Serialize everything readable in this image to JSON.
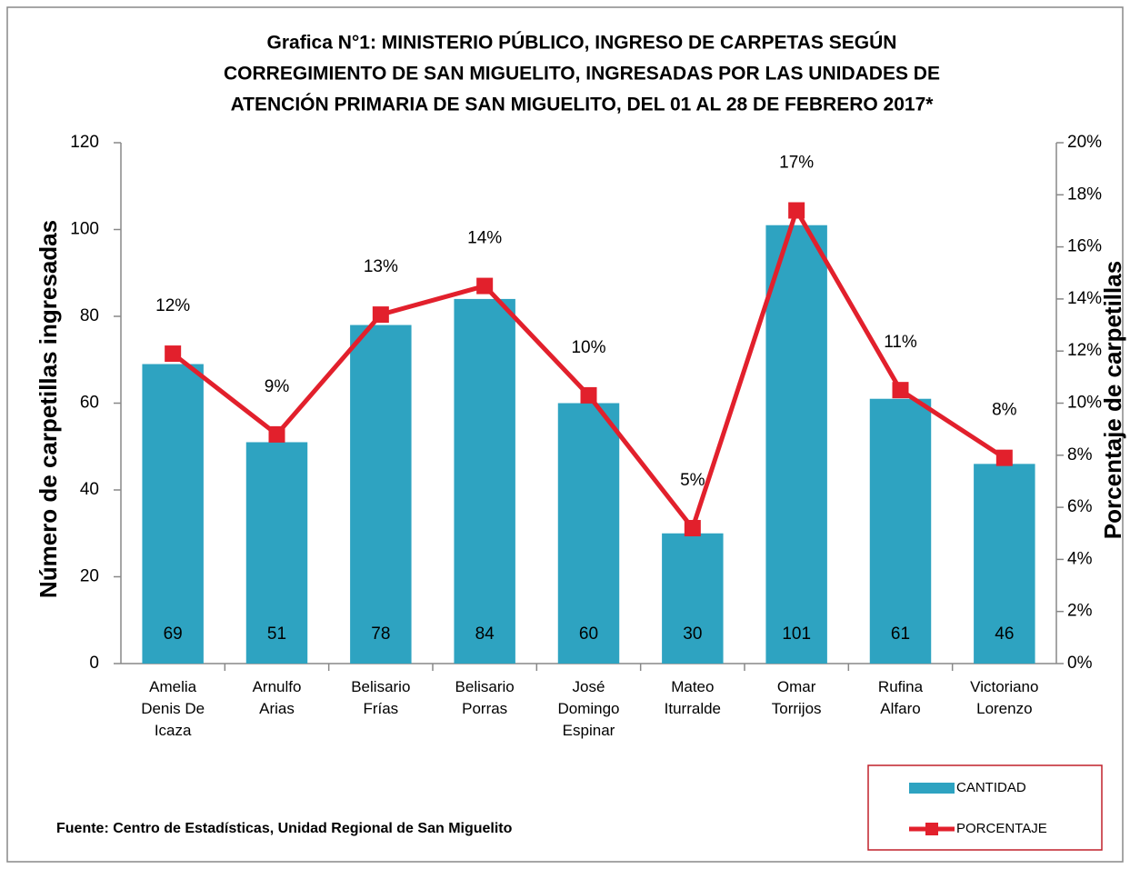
{
  "chart_data": {
    "type": "bar",
    "title": [
      "Grafica N°1: MINISTERIO PÚBLICO, INGRESO DE CARPETAS SEGÚN",
      "CORREGIMIENTO DE SAN MIGUELITO, INGRESADAS POR LAS UNIDADES DE",
      "ATENCIÓN PRIMARIA DE SAN MIGUELITO, DEL 01 AL 28 DE FEBRERO 2017*"
    ],
    "ylabel": "Número de carpetillas  ingresadas",
    "y2label": "Porcentaje de carpetillas",
    "categories": [
      "Amelia Denis De Icaza",
      "Arnulfo Arias",
      "Belisario Frías",
      "Belisario Porras",
      "José Domingo Espinar",
      "Mateo Iturralde",
      "Omar Torrijos",
      "Rufina Alfaro",
      "Victoriano Lorenzo"
    ],
    "series": [
      {
        "name": "CANTIDAD",
        "type": "bar",
        "color": "#2ea3c1",
        "values": [
          69,
          51,
          78,
          84,
          60,
          30,
          101,
          61,
          46
        ]
      },
      {
        "name": "PORCENTAJE",
        "type": "line",
        "axis": "y2",
        "color": "#e2202c",
        "values": [
          11.9,
          8.8,
          13.4,
          14.5,
          10.3,
          5.2,
          17.4,
          10.5,
          7.9
        ],
        "value_labels": [
          "12%",
          "9%",
          "13%",
          "14%",
          "10%",
          "5%",
          "17%",
          "11%",
          "8%"
        ]
      }
    ],
    "ylim": [
      0,
      120
    ],
    "yticks": [
      0,
      20,
      40,
      60,
      80,
      100,
      120
    ],
    "y2lim": [
      0,
      20
    ],
    "y2ticks": [
      {
        "value": 0,
        "label": "0%"
      },
      {
        "value": 2,
        "label": "2%"
      },
      {
        "value": 4,
        "label": "4%"
      },
      {
        "value": 6,
        "label": "6%"
      },
      {
        "value": 8,
        "label": "8%"
      },
      {
        "value": 10,
        "label": "10%"
      },
      {
        "value": 12,
        "label": "12%"
      },
      {
        "value": 14,
        "label": "14%"
      },
      {
        "value": 16,
        "label": "16%"
      },
      {
        "value": 18,
        "label": "18%"
      },
      {
        "value": 20,
        "label": "20%"
      }
    ],
    "grid": false,
    "legend": "bottom-right",
    "source": "Fuente: Centro de Estadísticas, Unidad Regional de San Miguelito"
  }
}
